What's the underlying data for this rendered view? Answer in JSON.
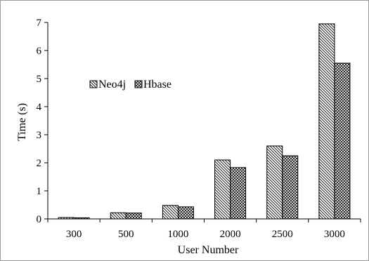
{
  "chart_data": {
    "type": "bar",
    "title": "",
    "xlabel": "User Number",
    "ylabel": "Time (s)",
    "categories": [
      "300",
      "500",
      "1000",
      "2000",
      "2500",
      "3000"
    ],
    "series": [
      {
        "name": "Neo4j",
        "values": [
          0.05,
          0.22,
          0.48,
          2.1,
          2.6,
          6.95
        ],
        "pattern": "diag-down"
      },
      {
        "name": "Hbase",
        "values": [
          0.04,
          0.21,
          0.43,
          1.83,
          2.25,
          5.55
        ],
        "pattern": "diag-cross"
      }
    ],
    "ylim": [
      0,
      7
    ],
    "yticks": [
      "0",
      "1",
      "2",
      "3",
      "4",
      "5",
      "6",
      "7"
    ],
    "grid": false,
    "legend": "upper-left",
    "colors": {
      "bar_fill": "#ffffff",
      "bar_stroke": "#000000",
      "axis": "#000000",
      "frame": "#9a9a9a"
    }
  }
}
